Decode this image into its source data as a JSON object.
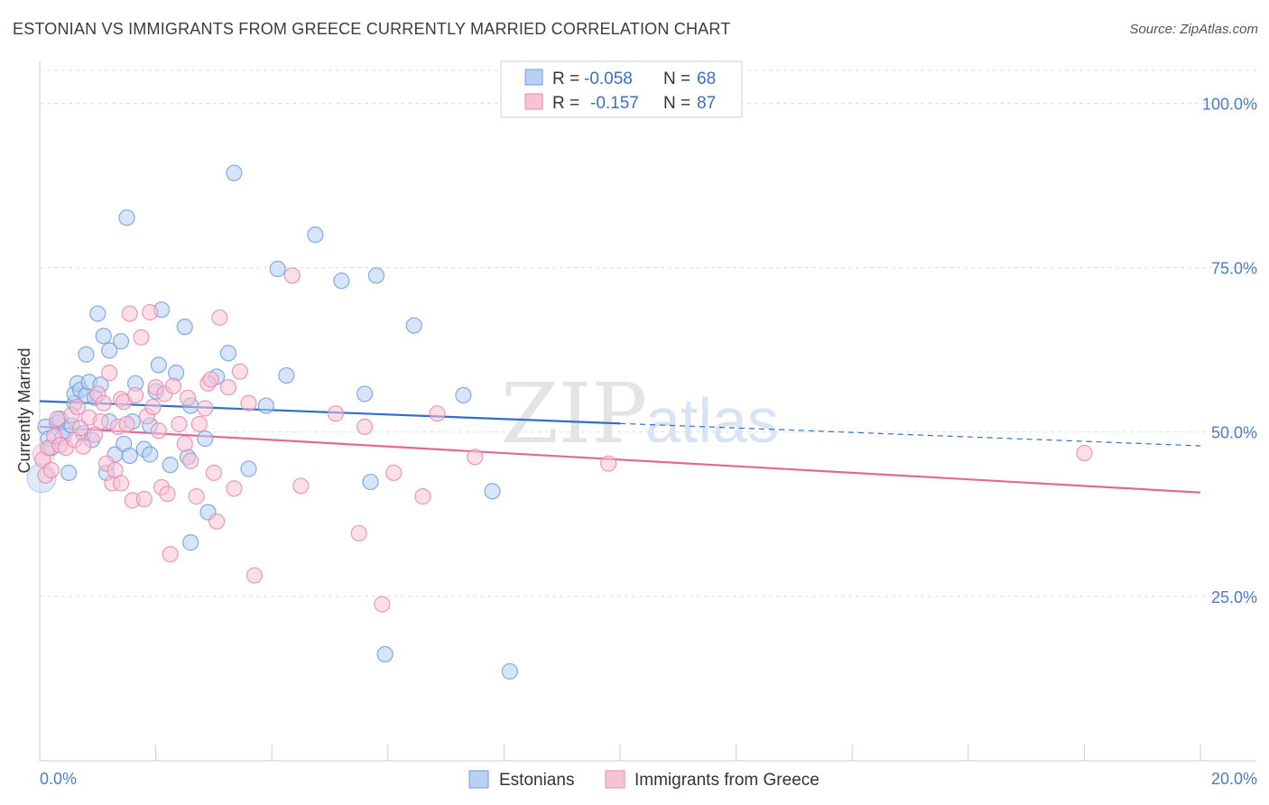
{
  "header": {
    "title": "ESTONIAN VS IMMIGRANTS FROM GREECE CURRENTLY MARRIED CORRELATION CHART",
    "source": "Source: ZipAtlas.com"
  },
  "watermark": {
    "zip": "ZIP",
    "atlas": "atlas"
  },
  "chart_data": {
    "type": "scatter",
    "ylabel": "Currently Married",
    "xlim": [
      0,
      20
    ],
    "ylim": [
      0,
      105
    ],
    "x_tick_labels": [
      "0.0%",
      "20.0%"
    ],
    "y_ticks": [
      25,
      50,
      75,
      100
    ],
    "y_tick_labels": [
      "25.0%",
      "50.0%",
      "75.0%",
      "100.0%"
    ],
    "grid": true,
    "legend": {
      "placement": "top-center",
      "entries": [
        {
          "r_label": "R = ",
          "r_value": "-0.058",
          "n_label": "N = ",
          "n_value": "68"
        },
        {
          "r_label": "R = ",
          "r_value": "-0.157",
          "n_label": "N = ",
          "n_value": "87"
        }
      ]
    },
    "bottom_legend": [
      "Estonians",
      "Immigrants from Greece"
    ],
    "colors": {
      "estonians_fill": "#b8d0f2",
      "estonians_stroke": "#6f9de0",
      "estonians_line": "#2f6fcb",
      "greece_fill": "#f7c2d5",
      "greece_stroke": "#e889ad",
      "greece_line": "#e06a95",
      "tick": "#4a7cc7",
      "grid": "#dddddd"
    },
    "series": [
      {
        "name": "Estonians",
        "trend": {
          "x0": 0,
          "y0": 54.7,
          "x1": 10,
          "y1": 51.3,
          "dash_x1": 20,
          "dash_y1": 47.9
        },
        "points": [
          [
            0.1,
            50.8
          ],
          [
            0.15,
            49.0
          ],
          [
            0.2,
            47.6
          ],
          [
            0.3,
            51.4
          ],
          [
            0.35,
            52.0
          ],
          [
            0.4,
            49.2
          ],
          [
            0.45,
            50.2
          ],
          [
            0.5,
            43.8
          ],
          [
            0.55,
            51.0
          ],
          [
            0.6,
            54.4
          ],
          [
            0.6,
            55.8
          ],
          [
            0.65,
            57.4
          ],
          [
            0.7,
            56.4
          ],
          [
            0.75,
            49.8
          ],
          [
            0.8,
            55.6
          ],
          [
            0.8,
            61.8
          ],
          [
            0.85,
            57.6
          ],
          [
            0.9,
            48.8
          ],
          [
            0.95,
            55.2
          ],
          [
            1.0,
            68.0
          ],
          [
            1.05,
            57.2
          ],
          [
            1.1,
            64.6
          ],
          [
            1.15,
            43.8
          ],
          [
            1.2,
            51.6
          ],
          [
            1.2,
            62.4
          ],
          [
            1.3,
            46.6
          ],
          [
            1.4,
            63.8
          ],
          [
            1.45,
            48.2
          ],
          [
            1.5,
            82.6
          ],
          [
            1.55,
            46.4
          ],
          [
            1.6,
            51.6
          ],
          [
            1.65,
            57.4
          ],
          [
            1.8,
            47.4
          ],
          [
            1.9,
            51.0
          ],
          [
            1.9,
            46.6
          ],
          [
            2.0,
            56.2
          ],
          [
            2.05,
            60.2
          ],
          [
            2.1,
            68.6
          ],
          [
            2.25,
            45.0
          ],
          [
            2.35,
            59.0
          ],
          [
            2.5,
            66.0
          ],
          [
            2.55,
            46.2
          ],
          [
            2.6,
            54.0
          ],
          [
            2.6,
            33.2
          ],
          [
            2.85,
            49.0
          ],
          [
            2.9,
            37.8
          ],
          [
            3.05,
            58.4
          ],
          [
            3.25,
            62.0
          ],
          [
            3.35,
            89.4
          ],
          [
            3.6,
            44.4
          ],
          [
            3.9,
            54.0
          ],
          [
            4.1,
            74.8
          ],
          [
            4.25,
            58.6
          ],
          [
            4.75,
            80.0
          ],
          [
            5.2,
            73.0
          ],
          [
            5.6,
            55.8
          ],
          [
            5.7,
            42.4
          ],
          [
            5.8,
            73.8
          ],
          [
            5.95,
            16.2
          ],
          [
            6.45,
            66.2
          ],
          [
            7.3,
            55.6
          ],
          [
            7.8,
            41.0
          ],
          [
            8.1,
            13.6
          ]
        ]
      },
      {
        "name": "Immigrants from Greece",
        "trend": {
          "x0": 0,
          "y0": 50.8,
          "x1": 20,
          "y1": 40.8
        },
        "points": [
          [
            0.05,
            45.8
          ],
          [
            0.1,
            43.4
          ],
          [
            0.15,
            47.6
          ],
          [
            0.2,
            44.2
          ],
          [
            0.25,
            49.4
          ],
          [
            0.3,
            52.0
          ],
          [
            0.35,
            48.0
          ],
          [
            0.45,
            47.6
          ],
          [
            0.55,
            52.6
          ],
          [
            0.6,
            48.8
          ],
          [
            0.65,
            53.8
          ],
          [
            0.7,
            50.6
          ],
          [
            0.75,
            47.8
          ],
          [
            0.85,
            52.2
          ],
          [
            0.95,
            49.6
          ],
          [
            1.0,
            55.8
          ],
          [
            1.05,
            51.6
          ],
          [
            1.1,
            54.4
          ],
          [
            1.15,
            45.2
          ],
          [
            1.2,
            59.0
          ],
          [
            1.25,
            42.2
          ],
          [
            1.3,
            44.2
          ],
          [
            1.35,
            50.8
          ],
          [
            1.4,
            55.0
          ],
          [
            1.4,
            42.2
          ],
          [
            1.45,
            54.6
          ],
          [
            1.5,
            51.2
          ],
          [
            1.55,
            68.0
          ],
          [
            1.6,
            39.6
          ],
          [
            1.65,
            55.6
          ],
          [
            1.75,
            64.4
          ],
          [
            1.8,
            39.8
          ],
          [
            1.85,
            52.4
          ],
          [
            1.9,
            68.2
          ],
          [
            1.95,
            53.8
          ],
          [
            2.0,
            56.8
          ],
          [
            2.05,
            50.2
          ],
          [
            2.1,
            41.6
          ],
          [
            2.15,
            55.8
          ],
          [
            2.2,
            40.6
          ],
          [
            2.25,
            31.4
          ],
          [
            2.3,
            57.0
          ],
          [
            2.4,
            51.2
          ],
          [
            2.5,
            48.2
          ],
          [
            2.55,
            55.2
          ],
          [
            2.6,
            45.6
          ],
          [
            2.7,
            40.2
          ],
          [
            2.75,
            51.2
          ],
          [
            2.85,
            53.6
          ],
          [
            2.9,
            57.4
          ],
          [
            2.95,
            58.0
          ],
          [
            3.0,
            43.8
          ],
          [
            3.05,
            36.4
          ],
          [
            3.1,
            67.4
          ],
          [
            3.25,
            56.8
          ],
          [
            3.35,
            41.4
          ],
          [
            3.45,
            59.2
          ],
          [
            3.6,
            54.4
          ],
          [
            3.7,
            28.2
          ],
          [
            4.35,
            73.8
          ],
          [
            4.5,
            41.8
          ],
          [
            5.1,
            52.8
          ],
          [
            5.5,
            34.6
          ],
          [
            5.6,
            50.8
          ],
          [
            5.9,
            23.8
          ],
          [
            6.1,
            43.8
          ],
          [
            6.6,
            40.2
          ],
          [
            6.85,
            52.8
          ],
          [
            7.5,
            46.2
          ],
          [
            9.8,
            45.2
          ],
          [
            18.0,
            46.8
          ]
        ]
      }
    ]
  }
}
